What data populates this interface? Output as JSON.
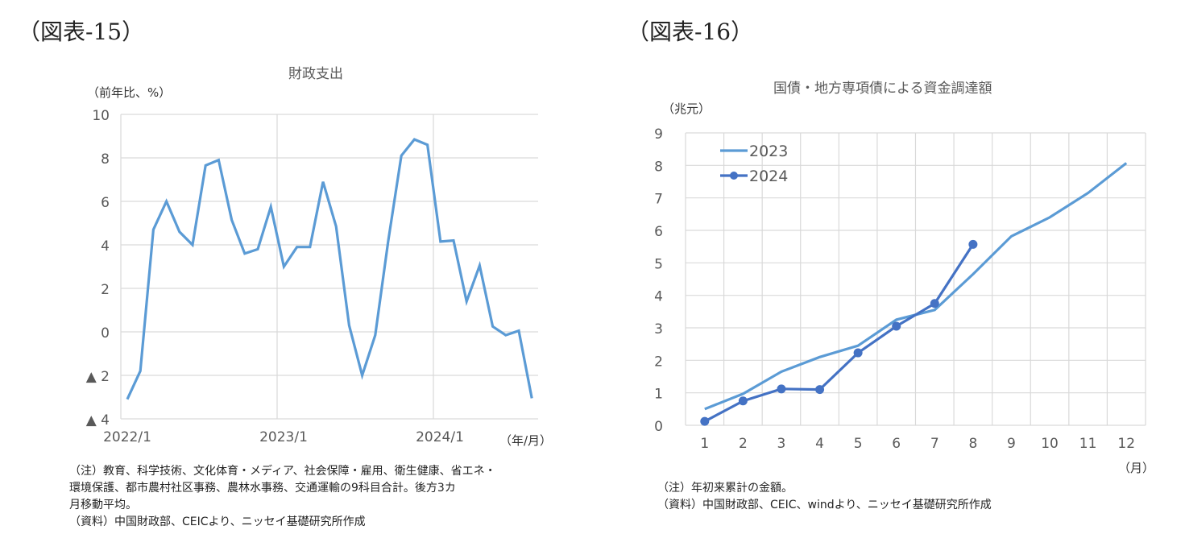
{
  "figures": [
    {
      "label": "（図表-15）",
      "title": "財政支出",
      "y_unit": "（前年比、%）",
      "x_unit": "（年/月）",
      "notes": [
        "（注）教育、科学技術、文化体育・メディア、社会保障・雇用、衛生健康、省エネ・",
        "環境保護、都市農村社区事務、農林水事務、交通運輸の9科目合計。後方3カ",
        "月移動平均。",
        "（資料）中国財政部、CEICより、ニッセイ基礎研究所作成"
      ]
    },
    {
      "label": "（図表-16）",
      "title": "国債・地方専項債による資金調達額",
      "y_unit": "（兆元）",
      "x_unit": "（月）",
      "notes": [
        "（注）年初来累計の金額。",
        "（資料）中国財政部、CEIC、windより、ニッセイ基礎研究所作成"
      ]
    }
  ],
  "chart_data": [
    {
      "type": "line",
      "title": "財政支出",
      "xlabel": "（年/月）",
      "ylabel": "（前年比、%）",
      "ylim": [
        -4,
        10
      ],
      "yticks": [
        10,
        8,
        6,
        4,
        2,
        0,
        -2,
        -4
      ],
      "ytick_labels": [
        "10",
        "8",
        "6",
        "4",
        "2",
        "0",
        "▲ 2",
        "▲ 4"
      ],
      "xtick_labels": [
        "2022/1",
        "2023/1",
        "2024/1"
      ],
      "grid": true,
      "legend": null,
      "color": "#5B9BD5",
      "x": [
        "2022/1",
        "2022/2",
        "2022/3",
        "2022/4",
        "2022/5",
        "2022/6",
        "2022/7",
        "2022/8",
        "2022/9",
        "2022/10",
        "2022/11",
        "2022/12",
        "2023/1",
        "2023/2",
        "2023/3",
        "2023/4",
        "2023/5",
        "2023/6",
        "2023/7",
        "2023/8",
        "2023/9",
        "2023/10",
        "2023/11",
        "2023/12",
        "2024/1",
        "2024/2",
        "2024/3",
        "2024/4",
        "2024/5",
        "2024/6",
        "2024/7",
        "2024/8"
      ],
      "series": [
        {
          "name": "財政支出",
          "values": [
            -3.1,
            -1.8,
            4.7,
            6.0,
            4.6,
            4.0,
            7.65,
            7.9,
            5.15,
            3.6,
            3.8,
            5.75,
            3.0,
            3.9,
            3.9,
            6.9,
            4.85,
            0.3,
            -2.0,
            -0.15,
            4.2,
            8.1,
            8.85,
            8.6,
            4.15,
            4.2,
            1.4,
            3.05,
            0.25,
            -0.15,
            0.05,
            -3.05
          ]
        }
      ]
    },
    {
      "type": "line",
      "title": "国債・地方専項債による資金調達額",
      "xlabel": "（月）",
      "ylabel": "（兆元）",
      "ylim": [
        0,
        9
      ],
      "yticks": [
        0,
        1,
        2,
        3,
        4,
        5,
        6,
        7,
        8,
        9
      ],
      "categories": [
        "1",
        "2",
        "3",
        "4",
        "5",
        "6",
        "7",
        "8",
        "9",
        "10",
        "11",
        "12"
      ],
      "grid": true,
      "legend_position": "top-left inside",
      "series": [
        {
          "name": "2023",
          "color": "#5B9BD5",
          "marker": false,
          "values": [
            0.5,
            0.97,
            1.65,
            2.1,
            2.45,
            3.25,
            3.55,
            4.65,
            5.82,
            6.4,
            7.15,
            8.07
          ]
        },
        {
          "name": "2024",
          "color": "#4472C4",
          "marker": true,
          "values": [
            0.12,
            0.75,
            1.12,
            1.1,
            2.23,
            3.05,
            3.75,
            5.57
          ]
        }
      ]
    }
  ]
}
